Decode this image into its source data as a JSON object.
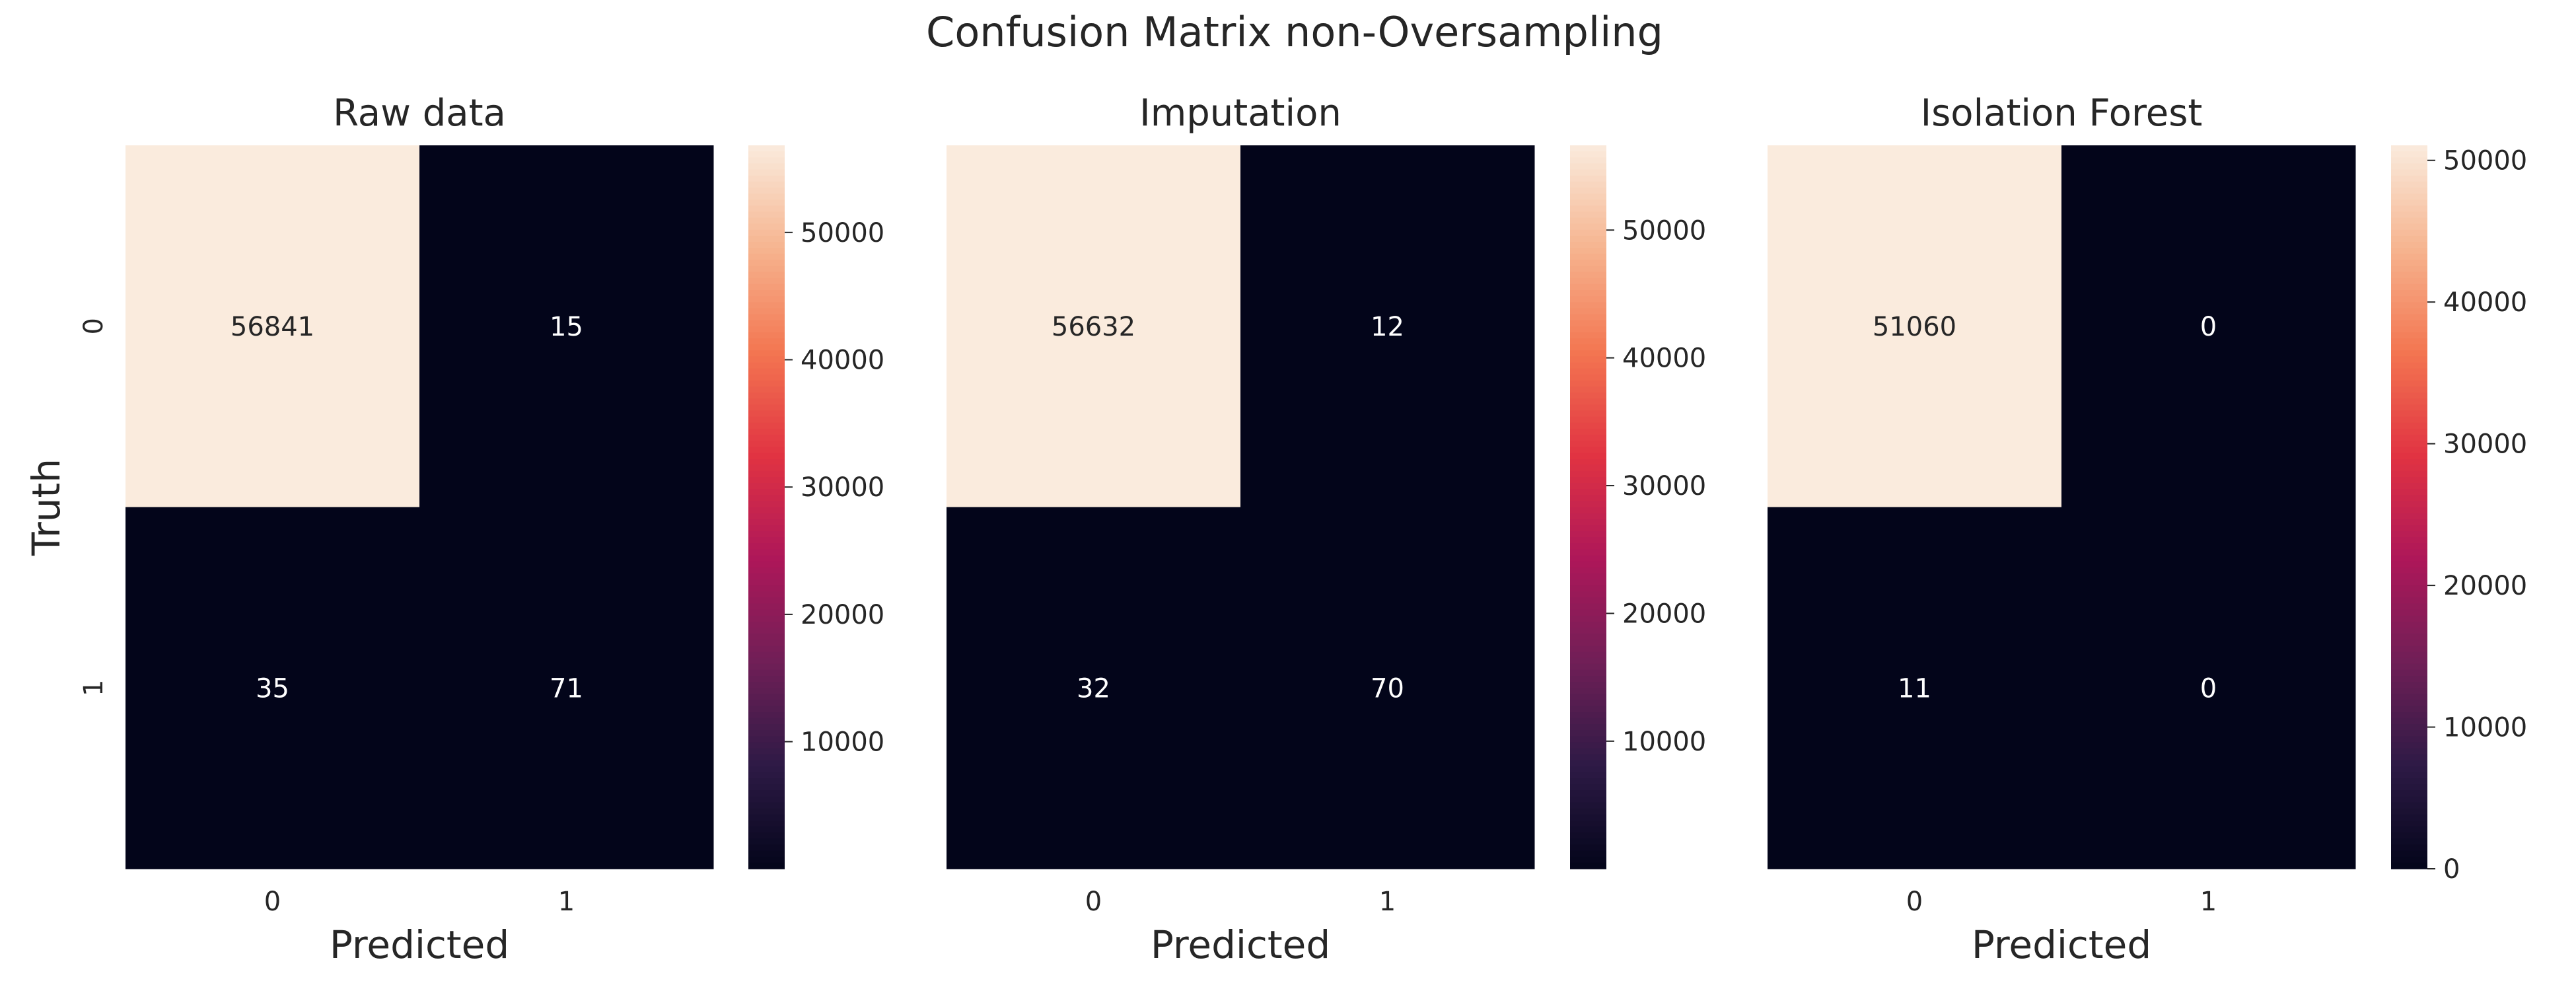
{
  "figure": {
    "suptitle": "Confusion Matrix non-Oversampling"
  },
  "colormap": [
    "#03051a",
    "#2e1a46",
    "#701f57",
    "#ae1759",
    "#e13342",
    "#f37651",
    "#f6b48f",
    "#faebdd"
  ],
  "chart_data": [
    {
      "type": "heatmap",
      "title": "Raw data",
      "xlabel": "Predicted",
      "ylabel": "Truth",
      "x_categories": [
        "0",
        "1"
      ],
      "y_categories": [
        "0",
        "1"
      ],
      "values": [
        [
          56841,
          15
        ],
        [
          35,
          71
        ]
      ],
      "colorbar": {
        "range": [
          15,
          56841
        ],
        "ticks": [
          10000,
          20000,
          30000,
          40000,
          50000
        ]
      }
    },
    {
      "type": "heatmap",
      "title": "Imputation",
      "xlabel": "Predicted",
      "ylabel": "",
      "x_categories": [
        "0",
        "1"
      ],
      "y_categories": [],
      "values": [
        [
          56632,
          12
        ],
        [
          32,
          70
        ]
      ],
      "colorbar": {
        "range": [
          12,
          56632
        ],
        "ticks": [
          10000,
          20000,
          30000,
          40000,
          50000
        ]
      }
    },
    {
      "type": "heatmap",
      "title": "Isolation Forest",
      "xlabel": "Predicted",
      "ylabel": "",
      "x_categories": [
        "0",
        "1"
      ],
      "y_categories": [],
      "values": [
        [
          51060,
          0
        ],
        [
          11,
          0
        ]
      ],
      "colorbar": {
        "range": [
          0,
          51060
        ],
        "ticks": [
          0,
          10000,
          20000,
          30000,
          40000,
          50000
        ]
      }
    }
  ]
}
